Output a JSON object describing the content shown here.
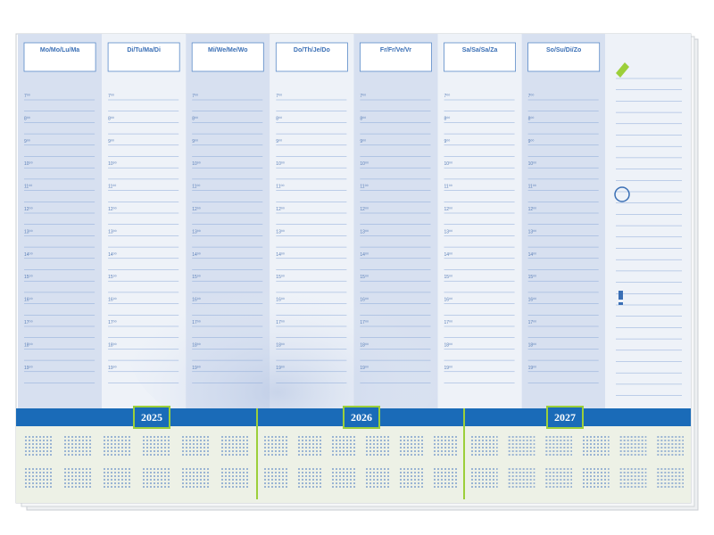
{
  "days": [
    "Mo/Mo/Lu/Ma",
    "Di/Tu/Ma/Di",
    "Mi/We/Me/Wo",
    "Do/Th/Je/Do",
    "Fr/Fr/Ve/Vr",
    "Sa/Sa/Sa/Za",
    "So/Su/Di/Zo"
  ],
  "hours": [
    "7⁰⁰",
    "8⁰⁰",
    "9⁰⁰",
    "10⁰⁰",
    "11⁰⁰",
    "12⁰⁰",
    "13⁰⁰",
    "14⁰⁰",
    "15⁰⁰",
    "16⁰⁰",
    "17⁰⁰",
    "18⁰⁰",
    "19⁰⁰"
  ],
  "years": [
    "2025",
    "2026",
    "2027"
  ]
}
